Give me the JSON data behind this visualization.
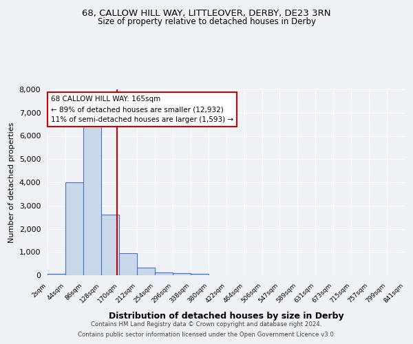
{
  "title_line1": "68, CALLOW HILL WAY, LITTLEOVER, DERBY, DE23 3RN",
  "title_line2": "Size of property relative to detached houses in Derby",
  "xlabel": "Distribution of detached houses by size in Derby",
  "ylabel": "Number of detached properties",
  "footnote1": "Contains HM Land Registry data © Crown copyright and database right 2024.",
  "footnote2": "Contains public sector information licensed under the Open Government Licence v3.0.",
  "annotation_title": "68 CALLOW HILL WAY: 165sqm",
  "annotation_line2": "← 89% of detached houses are smaller (12,932)",
  "annotation_line3": "11% of semi-detached houses are larger (1,593) →",
  "property_size": 165,
  "bin_edges": [
    2,
    44,
    86,
    128,
    170,
    212,
    254,
    296,
    338,
    380,
    422,
    464,
    506,
    547,
    589,
    631,
    673,
    715,
    757,
    799,
    841
  ],
  "bin_labels": [
    "2sqm",
    "44sqm",
    "86sqm",
    "128sqm",
    "170sqm",
    "212sqm",
    "254sqm",
    "296sqm",
    "338sqm",
    "380sqm",
    "422sqm",
    "464sqm",
    "506sqm",
    "547sqm",
    "589sqm",
    "631sqm",
    "673sqm",
    "715sqm",
    "757sqm",
    "799sqm",
    "841sqm"
  ],
  "counts": [
    70,
    4000,
    6600,
    2600,
    950,
    320,
    130,
    80,
    60,
    0,
    0,
    0,
    0,
    0,
    0,
    0,
    0,
    0,
    0,
    0
  ],
  "bar_color": "#c8d8e8",
  "bar_edge_color": "#4472c4",
  "vline_color": "#cc0000",
  "vline_x": 165,
  "ylim": [
    0,
    8000
  ],
  "background_color": "#eef2f7",
  "grid_color": "#ffffff",
  "annotation_box_color": "#ffffff",
  "annotation_box_edge_color": "#cc0000"
}
